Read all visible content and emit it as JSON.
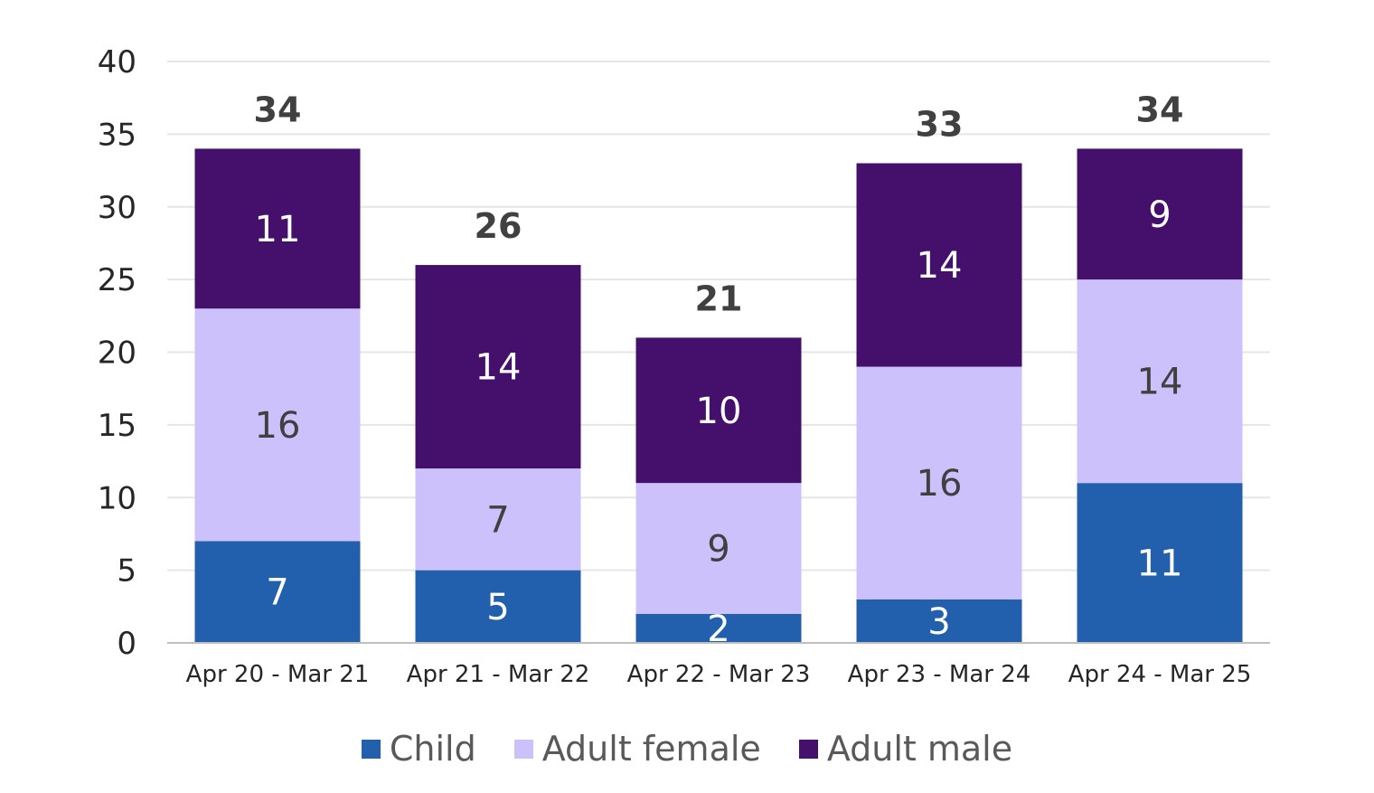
{
  "chart_data": {
    "type": "bar",
    "stacked": true,
    "categories": [
      "Apr 20 - Mar 21",
      "Apr 21 - Mar 22",
      "Apr 22 - Mar 23",
      "Apr 23 - Mar 24",
      "Apr 24 - Mar 25"
    ],
    "series": [
      {
        "name": "Child",
        "color": "#2260ad",
        "label_color": "#ffffff",
        "values": [
          7,
          5,
          2,
          3,
          11
        ]
      },
      {
        "name": "Adult female",
        "color": "#cdc1fb",
        "label_color": "#404040",
        "values": [
          16,
          7,
          9,
          16,
          14
        ]
      },
      {
        "name": "Adult male",
        "color": "#44106b",
        "label_color": "#ffffff",
        "values": [
          11,
          14,
          10,
          14,
          9
        ]
      }
    ],
    "totals": [
      34,
      26,
      21,
      33,
      34
    ],
    "ylim": [
      0,
      40
    ],
    "yticks": [
      0,
      5,
      10,
      15,
      20,
      25,
      30,
      35,
      40
    ],
    "grid": true,
    "legend_position": "bottom"
  }
}
